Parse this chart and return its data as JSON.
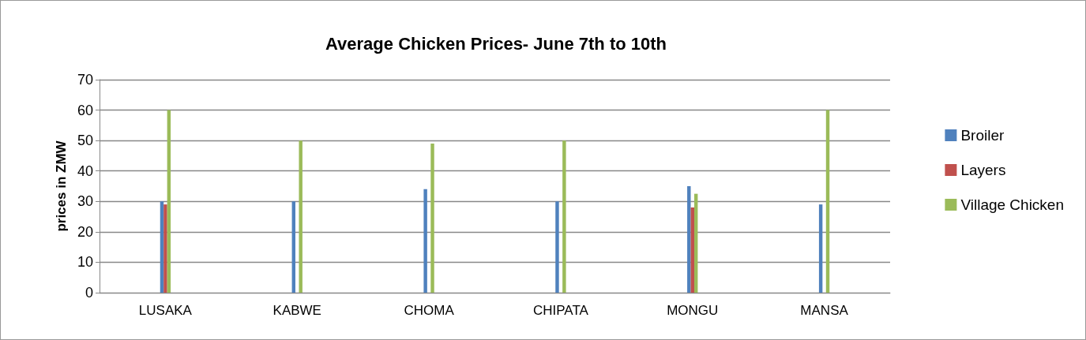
{
  "chart_data": {
    "type": "bar",
    "title": "Average Chicken Prices- June 7th to 10th",
    "ylabel": "prices in ZMW",
    "categories": [
      "LUSAKA",
      "KABWE",
      "CHOMA",
      "CHIPATA",
      "MONGU",
      "MANSA"
    ],
    "series": [
      {
        "name": "Broiler",
        "color": "#4f81bd",
        "values": [
          30,
          30,
          34,
          30,
          35,
          29
        ]
      },
      {
        "name": "Layers",
        "color": "#c0504d",
        "values": [
          29,
          null,
          null,
          null,
          28,
          null
        ]
      },
      {
        "name": "Village Chicken",
        "color": "#9bbb59",
        "values": [
          60,
          50,
          49,
          50,
          32.5,
          60
        ]
      }
    ],
    "ylim": [
      0,
      70
    ],
    "yticks": [
      0,
      10,
      20,
      30,
      40,
      50,
      60,
      70
    ],
    "grid": "y",
    "legend": "right"
  }
}
